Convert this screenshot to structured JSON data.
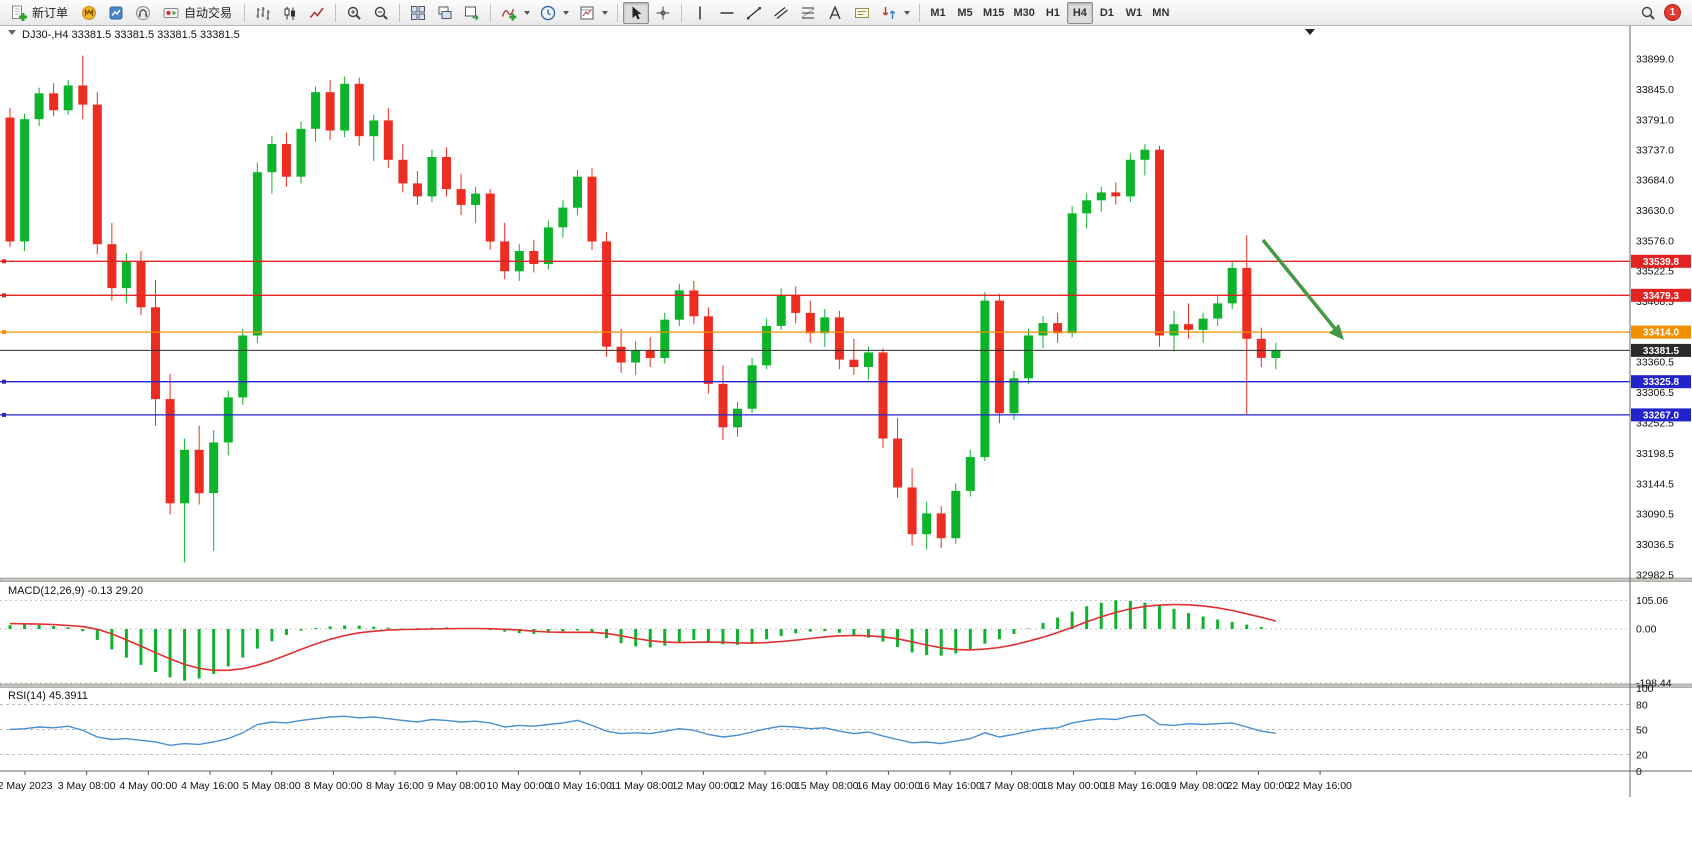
{
  "toolbar": {
    "new_order": "新订单",
    "autotrading": "自动交易",
    "timeframes": [
      "M1",
      "M5",
      "M15",
      "M30",
      "H1",
      "H4",
      "D1",
      "W1",
      "MN"
    ],
    "active_timeframe": "H4",
    "active_tool": "cursor",
    "notification_count": "1",
    "icon_names": [
      "new-order-icon",
      "mql5-market-icon",
      "profile-chart-icon",
      "notifications-icon",
      "autotrading-icon",
      "bar-chart-icon",
      "candlestick-chart-icon",
      "line-chart-icon",
      "zoom-in-icon",
      "zoom-out-icon",
      "tile-windows-icon",
      "arrange-windows-icon",
      "track-chart-icon",
      "indicators-icon",
      "periods-clock-icon",
      "templates-icon",
      "cursor-icon",
      "crosshair-icon",
      "vertical-line-icon",
      "horizontal-line-icon",
      "trendline-icon",
      "channel-icon",
      "fibonacci-icon",
      "text-icon",
      "text-label-icon",
      "arrows-icon",
      "search-icon"
    ]
  },
  "chart_data": {
    "type": "candlestick",
    "symbol": "DJ30-",
    "period": "H4",
    "header_text": "DJ30-,H4 33381.5 33381.5 33381.5 33381.5",
    "current_price": 33381.5,
    "colors": {
      "bull": "#0db32b",
      "bear": "#ed2c22",
      "background": "#ffffff",
      "line_red": "#e32222",
      "line_orange": "#f09000",
      "line_blue": "#2323cc",
      "current_line": "#2b2b2b",
      "rsi_line": "#4a8fd2",
      "macd_signal": "#e03030",
      "macd_hist": "#0db32b",
      "arrow": "#449944"
    },
    "price_axis_ticks": [
      33899.0,
      33845.0,
      33791.0,
      33737.0,
      33684.0,
      33630.0,
      33576.0,
      33522.5,
      33468.5,
      33414.5,
      33360.5,
      33306.5,
      33252.5,
      33198.5,
      33144.5,
      33090.5,
      33036.5,
      32982.5
    ],
    "horizontal_lines": [
      {
        "price": 33539.8,
        "label": "33539.8",
        "color": "#e32222",
        "style": "solid"
      },
      {
        "price": 33479.3,
        "label": "33479.3",
        "color": "#e32222",
        "style": "solid"
      },
      {
        "price": 33414.0,
        "label": "33414.0",
        "color": "#f09000",
        "style": "solid"
      },
      {
        "price": 33381.5,
        "label": "33381.5",
        "color": "#2b2b2b",
        "style": "current"
      },
      {
        "price": 33325.8,
        "label": "33325.8",
        "color": "#2323cc",
        "style": "solid"
      },
      {
        "price": 33267.0,
        "label": "33267.0",
        "color": "#2323cc",
        "style": "solid"
      }
    ],
    "time_labels": [
      "2 May 2023",
      "3 May 08:00",
      "4 May 00:00",
      "4 May 16:00",
      "5 May 08:00",
      "8 May 00:00",
      "8 May 16:00",
      "9 May 08:00",
      "10 May 00:00",
      "10 May 16:00",
      "11 May 08:00",
      "12 May 00:00",
      "12 May 16:00",
      "15 May 08:00",
      "16 May 00:00",
      "16 May 16:00",
      "17 May 08:00",
      "18 May 00:00",
      "18 May 16:00",
      "19 May 08:00",
      "22 May 00:00",
      "22 May 16:00"
    ],
    "candles_ohlc": [
      [
        33795,
        33812,
        33565,
        33575
      ],
      [
        33575,
        33802,
        33558,
        33792
      ],
      [
        33792,
        33848,
        33780,
        33838
      ],
      [
        33838,
        33856,
        33798,
        33808
      ],
      [
        33808,
        33862,
        33800,
        33852
      ],
      [
        33852,
        33905,
        33792,
        33818
      ],
      [
        33818,
        33840,
        33552,
        33570
      ],
      [
        33570,
        33608,
        33470,
        33492
      ],
      [
        33492,
        33554,
        33466,
        33540
      ],
      [
        33540,
        33558,
        33444,
        33458
      ],
      [
        33458,
        33506,
        33248,
        33295
      ],
      [
        33295,
        33340,
        33090,
        33110
      ],
      [
        33110,
        33225,
        33005,
        33205
      ],
      [
        33205,
        33248,
        33108,
        33128
      ],
      [
        33128,
        33240,
        33025,
        33218
      ],
      [
        33218,
        33310,
        33195,
        33298
      ],
      [
        33298,
        33420,
        33285,
        33408
      ],
      [
        33408,
        33715,
        33395,
        33698
      ],
      [
        33698,
        33762,
        33660,
        33748
      ],
      [
        33748,
        33768,
        33672,
        33690
      ],
      [
        33690,
        33788,
        33678,
        33775
      ],
      [
        33775,
        33850,
        33752,
        33840
      ],
      [
        33840,
        33862,
        33755,
        33772
      ],
      [
        33772,
        33868,
        33760,
        33855
      ],
      [
        33855,
        33866,
        33745,
        33762
      ],
      [
        33762,
        33800,
        33718,
        33790
      ],
      [
        33790,
        33812,
        33705,
        33720
      ],
      [
        33720,
        33748,
        33662,
        33678
      ],
      [
        33678,
        33700,
        33640,
        33655
      ],
      [
        33655,
        33738,
        33645,
        33725
      ],
      [
        33725,
        33742,
        33655,
        33668
      ],
      [
        33668,
        33695,
        33622,
        33640
      ],
      [
        33640,
        33672,
        33608,
        33660
      ],
      [
        33660,
        33668,
        33560,
        33575
      ],
      [
        33575,
        33608,
        33508,
        33522
      ],
      [
        33522,
        33570,
        33505,
        33558
      ],
      [
        33558,
        33578,
        33520,
        33535
      ],
      [
        33535,
        33612,
        33525,
        33600
      ],
      [
        33600,
        33648,
        33582,
        33635
      ],
      [
        33635,
        33702,
        33622,
        33690
      ],
      [
        33690,
        33705,
        33560,
        33575
      ],
      [
        33575,
        33592,
        33370,
        33388
      ],
      [
        33388,
        33420,
        33342,
        33360
      ],
      [
        33360,
        33398,
        33338,
        33382
      ],
      [
        33382,
        33405,
        33352,
        33368
      ],
      [
        33368,
        33448,
        33358,
        33436
      ],
      [
        33436,
        33500,
        33425,
        33488
      ],
      [
        33488,
        33505,
        33428,
        33442
      ],
      [
        33442,
        33458,
        33305,
        33322
      ],
      [
        33322,
        33355,
        33222,
        33245
      ],
      [
        33245,
        33290,
        33228,
        33278
      ],
      [
        33278,
        33368,
        33270,
        33355
      ],
      [
        33355,
        33438,
        33348,
        33425
      ],
      [
        33425,
        33492,
        33418,
        33480
      ],
      [
        33480,
        33495,
        33430,
        33448
      ],
      [
        33448,
        33470,
        33395,
        33412
      ],
      [
        33412,
        33455,
        33388,
        33440
      ],
      [
        33440,
        33452,
        33348,
        33365
      ],
      [
        33365,
        33402,
        33338,
        33352
      ],
      [
        33352,
        33388,
        33330,
        33378
      ],
      [
        33378,
        33385,
        33208,
        33225
      ],
      [
        33225,
        33262,
        33120,
        33138
      ],
      [
        33138,
        33172,
        33035,
        33055
      ],
      [
        33055,
        33112,
        33028,
        33092
      ],
      [
        33092,
        33105,
        33030,
        33048
      ],
      [
        33048,
        33145,
        33038,
        33132
      ],
      [
        33132,
        33205,
        33122,
        33192
      ],
      [
        33192,
        33485,
        33185,
        33470
      ],
      [
        33470,
        33482,
        33252,
        33270
      ],
      [
        33270,
        33345,
        33258,
        33332
      ],
      [
        33332,
        33420,
        33322,
        33408
      ],
      [
        33408,
        33442,
        33385,
        33430
      ],
      [
        33430,
        33448,
        33395,
        33412
      ],
      [
        33412,
        33638,
        33405,
        33625
      ],
      [
        33625,
        33660,
        33598,
        33648
      ],
      [
        33648,
        33672,
        33628,
        33662
      ],
      [
        33662,
        33680,
        33640,
        33655
      ],
      [
        33655,
        33732,
        33645,
        33720
      ],
      [
        33720,
        33748,
        33692,
        33738
      ],
      [
        33738,
        33745,
        33388,
        33408
      ],
      [
        33408,
        33452,
        33380,
        33428
      ],
      [
        33428,
        33465,
        33402,
        33418
      ],
      [
        33418,
        33448,
        33395,
        33438
      ],
      [
        33438,
        33478,
        33425,
        33465
      ],
      [
        33465,
        33540,
        33455,
        33528
      ],
      [
        33528,
        33586,
        33268,
        33402
      ],
      [
        33402,
        33422,
        33352,
        33368
      ],
      [
        33368,
        33395,
        33348,
        33381.5
      ]
    ],
    "macd": {
      "label": "MACD(12,26,9) -0.13 29.20",
      "params": "12,26,9",
      "main_value": -0.13,
      "signal_value": 29.2,
      "axis_ticks": [
        105.06,
        0.0,
        -198.44
      ],
      "histogram": [
        14,
        18,
        15,
        11,
        6,
        -8,
        -40,
        -75,
        -105,
        -132,
        -158,
        -178,
        -190,
        -182,
        -165,
        -138,
        -105,
        -72,
        -45,
        -22,
        -6,
        4,
        10,
        13,
        12,
        9,
        5,
        2,
        3,
        5,
        6,
        4,
        1,
        -4,
        -10,
        -15,
        -18,
        -14,
        -9,
        -5,
        -14,
        -34,
        -52,
        -64,
        -68,
        -61,
        -50,
        -40,
        -46,
        -56,
        -58,
        -50,
        -38,
        -26,
        -16,
        -10,
        -8,
        -14,
        -24,
        -32,
        -46,
        -66,
        -86,
        -96,
        -98,
        -90,
        -74,
        -54,
        -38,
        -18,
        2,
        22,
        42,
        64,
        84,
        97,
        105,
        103,
        97,
        87,
        74,
        59,
        46,
        35,
        26,
        16,
        7,
        0
      ],
      "signal": [
        20,
        19,
        18,
        16,
        13,
        9,
        -1,
        -18,
        -40,
        -63,
        -87,
        -110,
        -130,
        -145,
        -152,
        -152,
        -146,
        -133,
        -116,
        -96,
        -75,
        -55,
        -38,
        -24,
        -14,
        -8,
        -4,
        -2,
        -1,
        0,
        1,
        2,
        2,
        1,
        -1,
        -4,
        -8,
        -11,
        -12,
        -12,
        -12,
        -16,
        -25,
        -35,
        -43,
        -48,
        -50,
        -49,
        -48,
        -49,
        -51,
        -52,
        -50,
        -46,
        -41,
        -35,
        -29,
        -25,
        -24,
        -25,
        -29,
        -36,
        -47,
        -59,
        -69,
        -75,
        -77,
        -74,
        -68,
        -58,
        -45,
        -30,
        -13,
        6,
        26,
        45,
        61,
        74,
        83,
        88,
        90,
        89,
        85,
        78,
        68,
        56,
        43,
        29
      ]
    },
    "rsi": {
      "label": "RSI(14) 45.3911",
      "period": 14,
      "value": 45.3911,
      "axis_ticks": [
        100,
        80,
        50,
        20,
        0
      ],
      "levels": [
        80,
        50,
        20
      ],
      "values": [
        50,
        51,
        53,
        52,
        54,
        49,
        41,
        38,
        39,
        37,
        35,
        31,
        33,
        32,
        35,
        39,
        46,
        56,
        59,
        58,
        61,
        63,
        65,
        66,
        64,
        65,
        63,
        61,
        59,
        62,
        61,
        59,
        60,
        58,
        53,
        55,
        54,
        56,
        58,
        61,
        55,
        48,
        45,
        46,
        45,
        48,
        51,
        49,
        44,
        41,
        43,
        47,
        51,
        54,
        53,
        51,
        52,
        48,
        45,
        47,
        42,
        38,
        34,
        35,
        33,
        36,
        39,
        46,
        41,
        44,
        48,
        51,
        52,
        58,
        61,
        63,
        62,
        66,
        68,
        56,
        55,
        57,
        56,
        57,
        58,
        53,
        48,
        45.4
      ]
    },
    "annotation": {
      "type": "arrow",
      "direction": "down-right",
      "color": "#449944"
    }
  }
}
